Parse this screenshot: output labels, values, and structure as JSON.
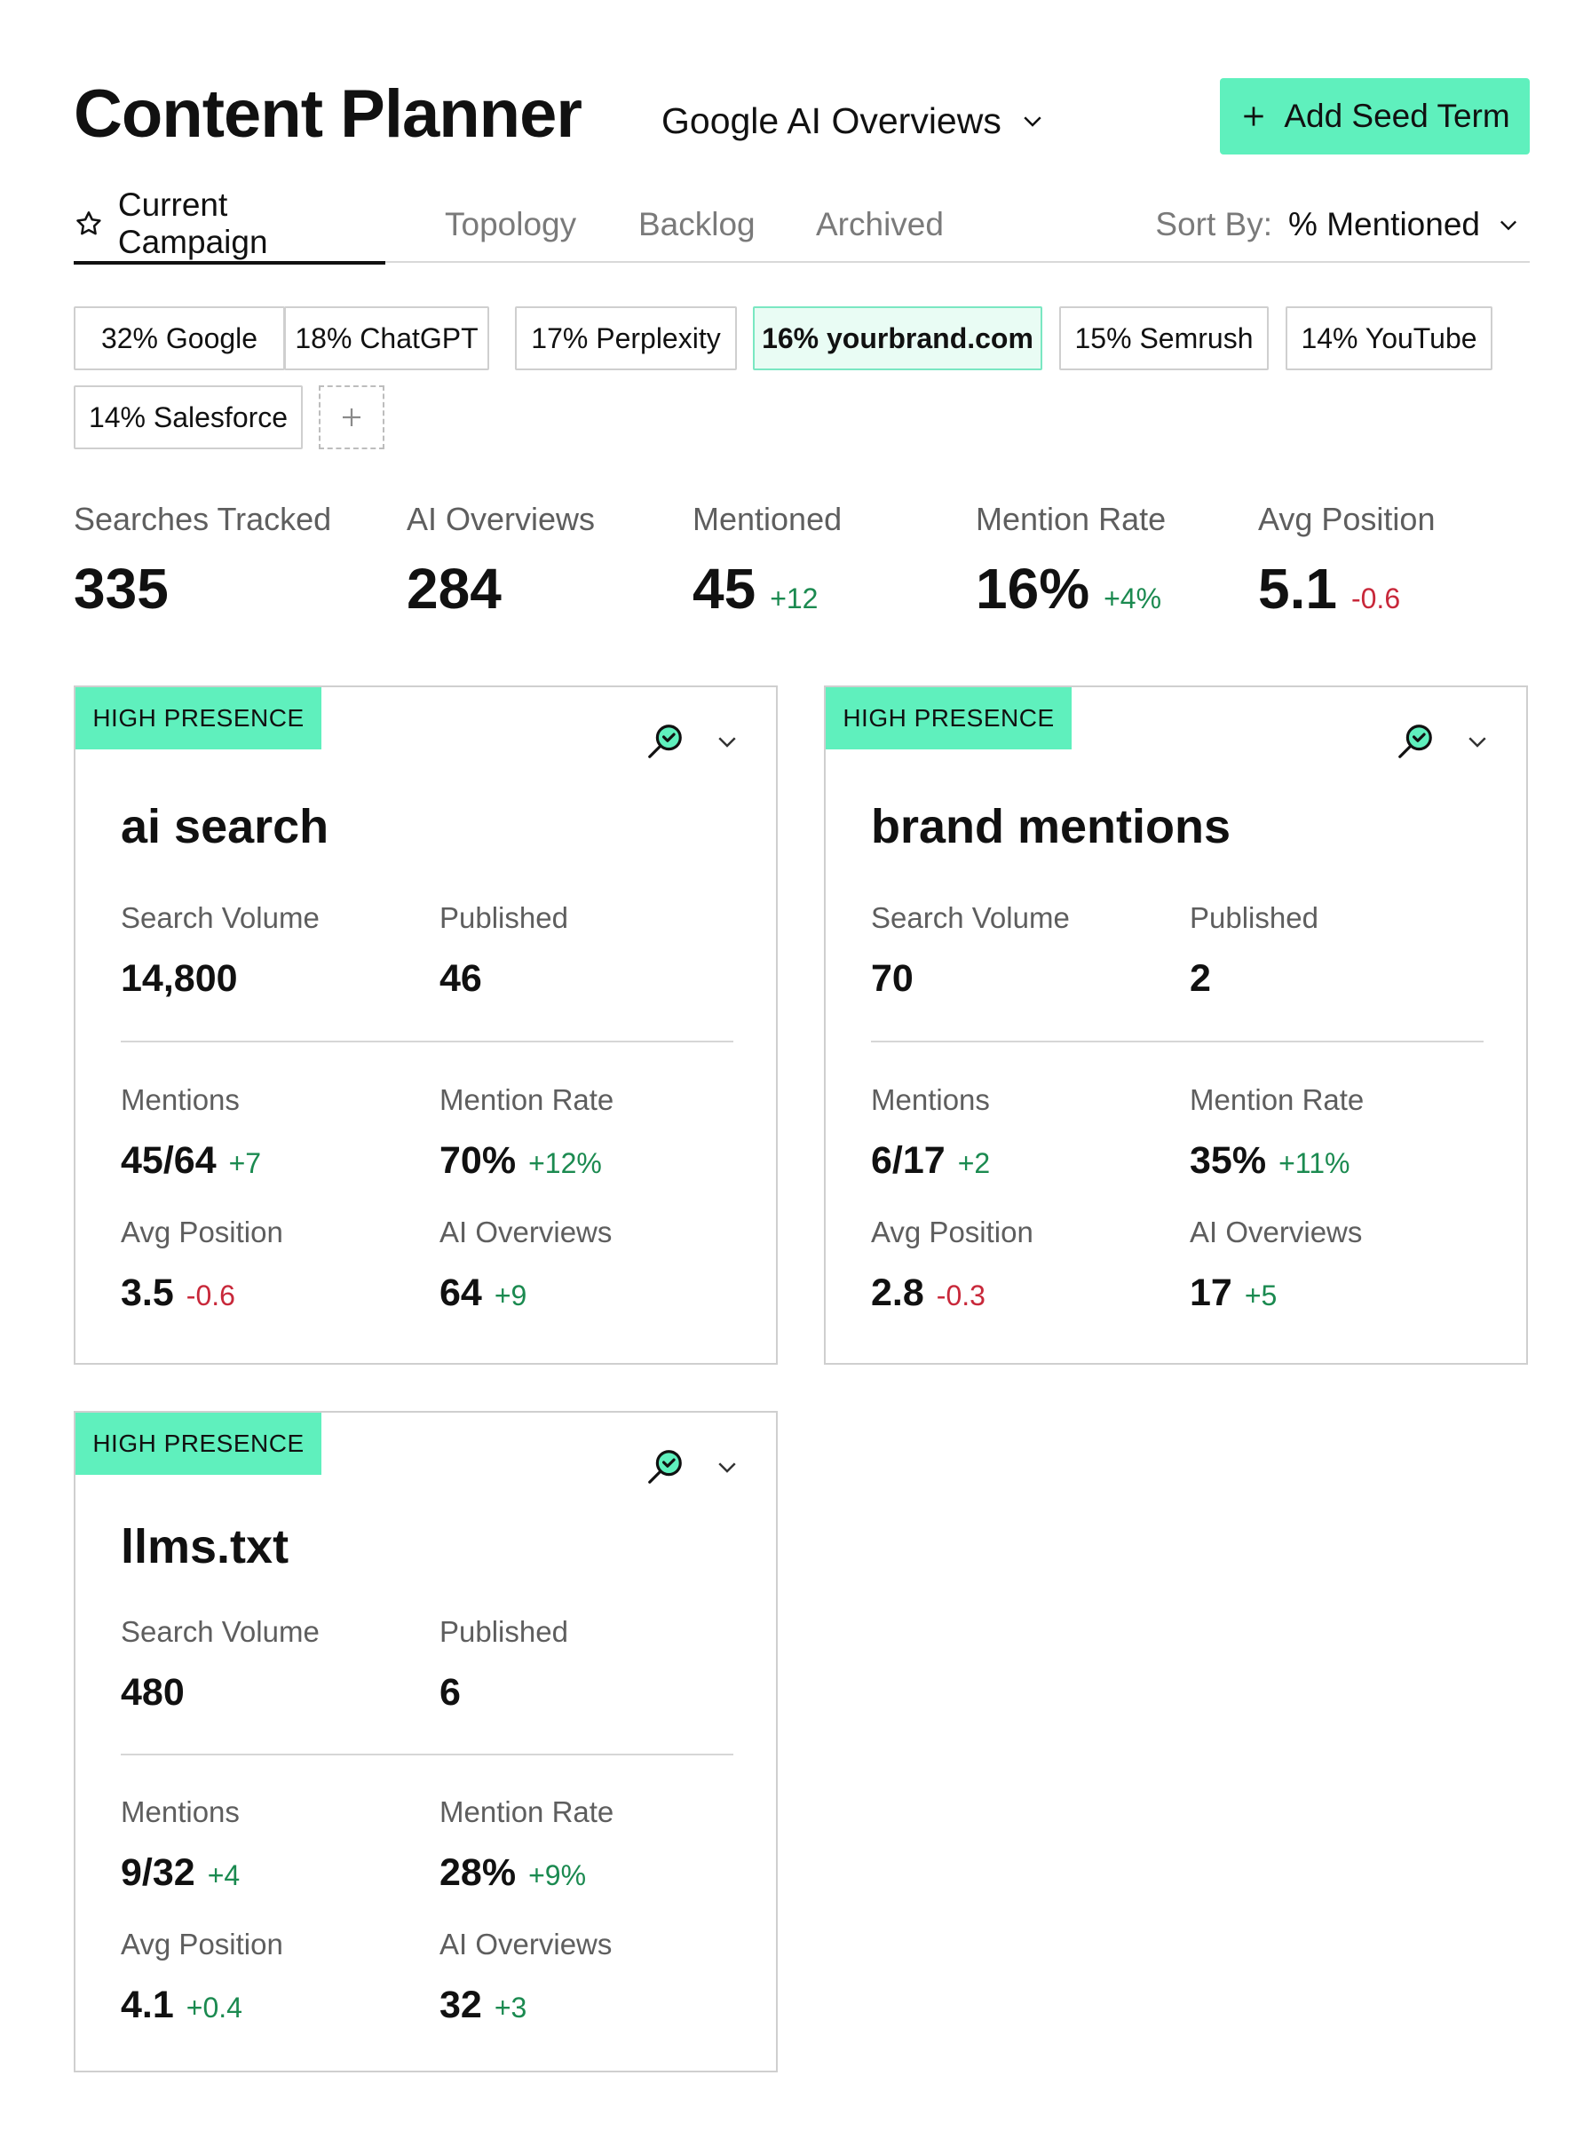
{
  "header": {
    "title": "Content Planner",
    "source": "Google AI Overviews",
    "add_button": "Add Seed Term"
  },
  "tabs": [
    {
      "label": "Current Campaign",
      "active": true
    },
    {
      "label": "Topology"
    },
    {
      "label": "Backlog"
    },
    {
      "label": "Archived"
    }
  ],
  "sort": {
    "label": "Sort By:",
    "value": "% Mentioned"
  },
  "chips": [
    {
      "label": "32% Google"
    },
    {
      "label": "18% ChatGPT"
    },
    {
      "label": "17% Perplexity"
    },
    {
      "label": "16% yourbrand.com",
      "selected": true
    },
    {
      "label": "15% Semrush"
    },
    {
      "label": "14% YouTube"
    },
    {
      "label": "14% Salesforce"
    }
  ],
  "stats": [
    {
      "label": "Searches Tracked",
      "value": "335",
      "delta": ""
    },
    {
      "label": "AI Overviews",
      "value": "284",
      "delta": ""
    },
    {
      "label": "Mentioned",
      "value": "45",
      "delta": "+12"
    },
    {
      "label": "Mention Rate",
      "value": "16%",
      "delta": "+4%"
    },
    {
      "label": "Avg Position",
      "value": "5.1",
      "delta": "-0.6"
    }
  ],
  "cards": [
    {
      "badge": "HIGH PRESENCE",
      "title": "ai search",
      "search_volume_label": "Search Volume",
      "search_volume": "14,800",
      "published_label": "Published",
      "published": "46",
      "mentions_label": "Mentions",
      "mentions": "45/64",
      "mentions_delta": "+7",
      "rate_label": "Mention Rate",
      "rate": "70%",
      "rate_delta": "+12%",
      "avgpos_label": "Avg Position",
      "avgpos": "3.5",
      "avgpos_delta": "-0.6",
      "aio_label": "AI Overviews",
      "aio": "64",
      "aio_delta": "+9"
    },
    {
      "badge": "HIGH PRESENCE",
      "title": "brand mentions",
      "search_volume_label": "Search Volume",
      "search_volume": "70",
      "published_label": "Published",
      "published": "2",
      "mentions_label": "Mentions",
      "mentions": "6/17",
      "mentions_delta": "+2",
      "rate_label": "Mention Rate",
      "rate": "35%",
      "rate_delta": "+11%",
      "avgpos_label": "Avg Position",
      "avgpos": "2.8",
      "avgpos_delta": "-0.3",
      "aio_label": "AI Overviews",
      "aio": "17",
      "aio_delta": "+5"
    },
    {
      "badge": "HIGH PRESENCE",
      "title": "llms.txt",
      "search_volume_label": "Search Volume",
      "search_volume": "480",
      "published_label": "Published",
      "published": "6",
      "mentions_label": "Mentions",
      "mentions": "9/32",
      "mentions_delta": "+4",
      "rate_label": "Mention Rate",
      "rate": "28%",
      "rate_delta": "+9%",
      "avgpos_label": "Avg Position",
      "avgpos": "4.1",
      "avgpos_delta": "+0.4",
      "aio_label": "AI Overviews",
      "aio": "32",
      "aio_delta": "+3"
    }
  ],
  "icons": {
    "add": "plus-icon",
    "dropdown": "chevron-down-icon",
    "campaign": "star-icon",
    "card_search": "search-check-icon"
  },
  "colors": {
    "accent": "#5ff0bd",
    "selected_chip_bg": "#e9fcf4",
    "positive": "#1b8a50",
    "negative": "#c8283a"
  }
}
